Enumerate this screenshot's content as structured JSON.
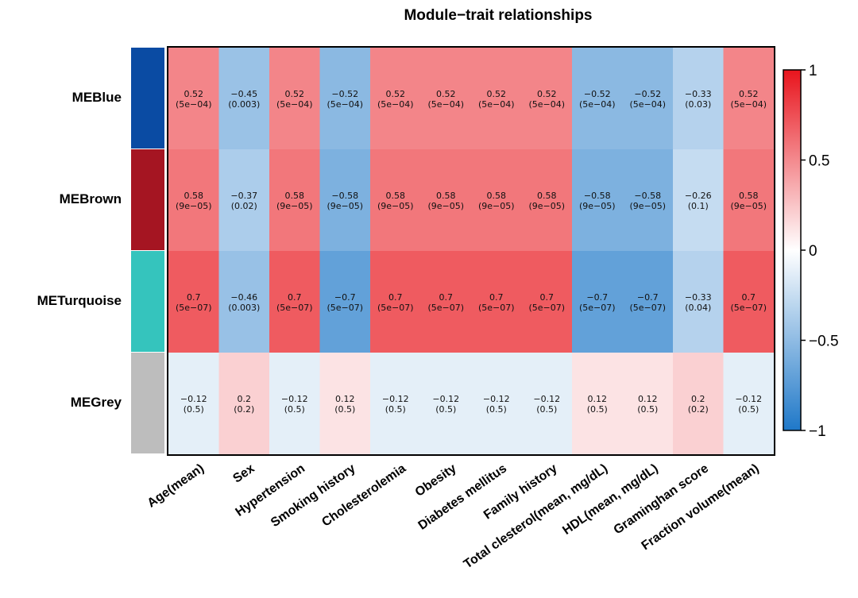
{
  "chart_data": {
    "type": "heatmap",
    "title": "Module−trait relationships",
    "rows": [
      {
        "name": "MEBlue",
        "color": "#0a4ba3"
      },
      {
        "name": "MEBrown",
        "color": "#a51522"
      },
      {
        "name": "METurquoise",
        "color": "#35c4bd"
      },
      {
        "name": "MEGrey",
        "color": "#bdbdbd"
      }
    ],
    "columns": [
      "Age(mean)",
      "Sex",
      "Hypertension",
      "Smoking history",
      "Cholesterolemia",
      "Obesity",
      "Diabetes mellitus",
      "Family history",
      "Total clesterol(mean, mg/dL)",
      "HDL(mean, mg/dL)",
      "Graminghan score",
      "Fraction volume(mean)"
    ],
    "values": [
      [
        0.52,
        -0.45,
        0.52,
        -0.52,
        0.52,
        0.52,
        0.52,
        0.52,
        -0.52,
        -0.52,
        -0.33,
        0.52
      ],
      [
        0.58,
        -0.37,
        0.58,
        -0.58,
        0.58,
        0.58,
        0.58,
        0.58,
        -0.58,
        -0.58,
        -0.26,
        0.58
      ],
      [
        0.7,
        -0.46,
        0.7,
        -0.7,
        0.7,
        0.7,
        0.7,
        0.7,
        -0.7,
        -0.7,
        -0.33,
        0.7
      ],
      [
        -0.12,
        0.2,
        -0.12,
        0.12,
        -0.12,
        -0.12,
        -0.12,
        -0.12,
        0.12,
        0.12,
        0.2,
        -0.12
      ]
    ],
    "value_labels": [
      [
        "0.52",
        "−0.45",
        "0.52",
        "−0.52",
        "0.52",
        "0.52",
        "0.52",
        "0.52",
        "−0.52",
        "−0.52",
        "−0.33",
        "0.52"
      ],
      [
        "0.58",
        "−0.37",
        "0.58",
        "−0.58",
        "0.58",
        "0.58",
        "0.58",
        "0.58",
        "−0.58",
        "−0.58",
        "−0.26",
        "0.58"
      ],
      [
        "0.7",
        "−0.46",
        "0.7",
        "−0.7",
        "0.7",
        "0.7",
        "0.7",
        "0.7",
        "−0.7",
        "−0.7",
        "−0.33",
        "0.7"
      ],
      [
        "−0.12",
        "0.2",
        "−0.12",
        "0.12",
        "−0.12",
        "−0.12",
        "−0.12",
        "−0.12",
        "0.12",
        "0.12",
        "0.2",
        "−0.12"
      ]
    ],
    "pvalues": [
      [
        "(5e−04)",
        "(0.003)",
        "(5e−04)",
        "(5e−04)",
        "(5e−04)",
        "(5e−04)",
        "(5e−04)",
        "(5e−04)",
        "(5e−04)",
        "(5e−04)",
        "(0.03)",
        "(5e−04)"
      ],
      [
        "(9e−05)",
        "(0.02)",
        "(9e−05)",
        "(9e−05)",
        "(9e−05)",
        "(9e−05)",
        "(9e−05)",
        "(9e−05)",
        "(9e−05)",
        "(9e−05)",
        "(0.1)",
        "(9e−05)"
      ],
      [
        "(5e−07)",
        "(0.003)",
        "(5e−07)",
        "(5e−07)",
        "(5e−07)",
        "(5e−07)",
        "(5e−07)",
        "(5e−07)",
        "(5e−07)",
        "(5e−07)",
        "(0.04)",
        "(5e−07)"
      ],
      [
        "(0.5)",
        "(0.2)",
        "(0.5)",
        "(0.5)",
        "(0.5)",
        "(0.5)",
        "(0.5)",
        "(0.5)",
        "(0.5)",
        "(0.5)",
        "(0.2)",
        "(0.5)"
      ]
    ],
    "colorbar": {
      "range": [
        -1,
        1
      ],
      "ticks": [
        "1",
        "0.5",
        "0",
        "−0.5",
        "−1"
      ],
      "tick_values": [
        1,
        0.5,
        0,
        -0.5,
        -1
      ],
      "colors": {
        "low": "#1f78c8",
        "mid": "#ffffff",
        "high": "#e8141c"
      }
    }
  }
}
